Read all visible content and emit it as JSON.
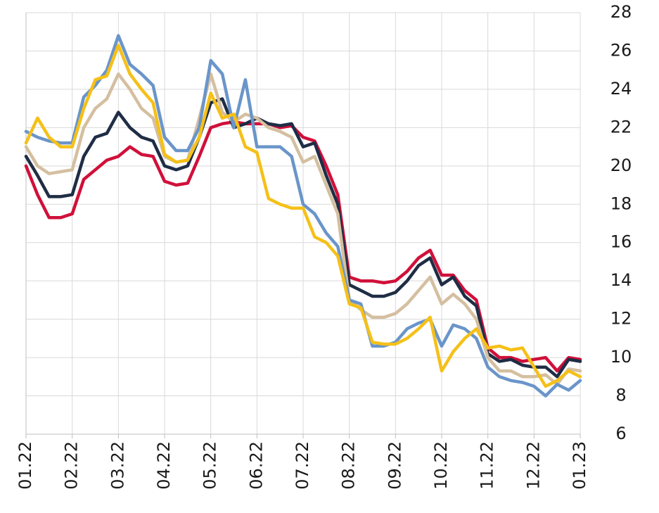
{
  "chart_data": {
    "type": "line",
    "x": [
      0,
      0.25,
      0.5,
      0.75,
      1,
      1.25,
      1.5,
      1.75,
      2,
      2.25,
      2.5,
      2.75,
      3,
      3.25,
      3.5,
      3.75,
      4,
      4.25,
      4.5,
      4.75,
      5,
      5.25,
      5.5,
      5.75,
      6,
      6.25,
      6.5,
      6.75,
      7,
      7.25,
      7.5,
      7.75,
      8,
      8.25,
      8.5,
      8.75,
      9,
      9.25,
      9.5,
      9.75,
      10,
      10.25,
      10.5,
      10.75,
      11,
      11.25,
      11.5,
      11.75,
      12
    ],
    "xlim": [
      0,
      12
    ],
    "xticks": [
      {
        "value": 0,
        "label": "01.22"
      },
      {
        "value": 1,
        "label": "02.22"
      },
      {
        "value": 2,
        "label": "03.22"
      },
      {
        "value": 3,
        "label": "04.22"
      },
      {
        "value": 4,
        "label": "05.22"
      },
      {
        "value": 5,
        "label": "06.22"
      },
      {
        "value": 6,
        "label": "07.22"
      },
      {
        "value": 7,
        "label": "08.22"
      },
      {
        "value": 8,
        "label": "09.22"
      },
      {
        "value": 9,
        "label": "10.22"
      },
      {
        "value": 10,
        "label": "11.22"
      },
      {
        "value": 11,
        "label": "12.22"
      },
      {
        "value": 12,
        "label": "01.23"
      }
    ],
    "ylim": [
      6,
      28
    ],
    "yticks": [
      6,
      8,
      10,
      12,
      14,
      16,
      18,
      20,
      22,
      24,
      26,
      28
    ],
    "grid": true,
    "series": [
      {
        "color": "#d0103a",
        "values": [
          20.0,
          18.5,
          17.3,
          17.3,
          17.5,
          19.3,
          19.8,
          20.3,
          20.5,
          21.0,
          20.6,
          20.5,
          19.2,
          19.0,
          19.1,
          20.5,
          22.0,
          22.2,
          22.3,
          22.2,
          22.2,
          22.2,
          22.0,
          22.1,
          21.5,
          21.3,
          20.0,
          18.5,
          14.2,
          14.0,
          14.0,
          13.9,
          14.0,
          14.5,
          15.2,
          15.6,
          14.3,
          14.3,
          13.5,
          13.0,
          10.5,
          10.0,
          10.0,
          9.8,
          9.9,
          10.0,
          9.3,
          10.0,
          9.9
        ]
      },
      {
        "color": "#1f2d45",
        "values": [
          20.5,
          19.5,
          18.4,
          18.4,
          18.5,
          20.5,
          21.5,
          21.7,
          22.8,
          22.0,
          21.5,
          21.3,
          20.0,
          19.8,
          20.0,
          21.5,
          23.3,
          23.5,
          22.0,
          22.2,
          22.5,
          22.2,
          22.1,
          22.2,
          21.0,
          21.2,
          19.5,
          18.0,
          13.8,
          13.5,
          13.2,
          13.2,
          13.4,
          14.0,
          14.8,
          15.2,
          13.8,
          14.2,
          13.2,
          12.7,
          10.2,
          9.8,
          9.9,
          9.6,
          9.5,
          9.5,
          9.0,
          9.9,
          9.8
        ]
      },
      {
        "color": "#d4bfa0",
        "values": [
          21.0,
          20.0,
          19.6,
          19.7,
          19.8,
          22.0,
          23.0,
          23.5,
          24.8,
          24.0,
          23.0,
          22.5,
          20.5,
          20.2,
          20.3,
          22.5,
          24.8,
          22.8,
          22.3,
          22.7,
          22.5,
          22.0,
          21.8,
          21.5,
          20.2,
          20.5,
          19.0,
          17.5,
          13.0,
          12.5,
          12.1,
          12.1,
          12.3,
          12.8,
          13.5,
          14.2,
          12.8,
          13.3,
          12.8,
          12.0,
          10.0,
          9.3,
          9.3,
          9.0,
          9.0,
          9.1,
          8.6,
          9.4,
          9.3
        ]
      },
      {
        "color": "#6a95c9",
        "values": [
          21.8,
          21.5,
          21.3,
          21.2,
          21.2,
          23.6,
          24.2,
          25.0,
          26.8,
          25.3,
          24.8,
          24.2,
          21.5,
          20.8,
          20.8,
          22.0,
          25.5,
          24.8,
          22.0,
          24.5,
          21.0,
          21.0,
          21.0,
          20.5,
          18.0,
          17.5,
          16.5,
          15.8,
          13.0,
          12.8,
          10.6,
          10.6,
          10.8,
          11.5,
          11.8,
          12.0,
          10.6,
          11.7,
          11.5,
          11.0,
          9.5,
          9.0,
          8.8,
          8.7,
          8.5,
          8.0,
          8.6,
          8.3,
          8.8
        ]
      },
      {
        "color": "#f5c018",
        "values": [
          21.2,
          22.5,
          21.5,
          21.0,
          21.0,
          23.0,
          24.5,
          24.7,
          26.3,
          24.8,
          24.0,
          23.3,
          20.6,
          20.2,
          20.3,
          21.5,
          23.8,
          22.5,
          22.7,
          21.0,
          20.7,
          18.3,
          18.0,
          17.8,
          17.8,
          16.3,
          16.0,
          15.3,
          12.8,
          12.6,
          10.8,
          10.7,
          10.7,
          11.0,
          11.5,
          12.1,
          9.3,
          10.3,
          11.0,
          11.5,
          10.5,
          10.6,
          10.4,
          10.5,
          9.5,
          8.5,
          8.8,
          9.3,
          9.0
        ]
      }
    ]
  }
}
